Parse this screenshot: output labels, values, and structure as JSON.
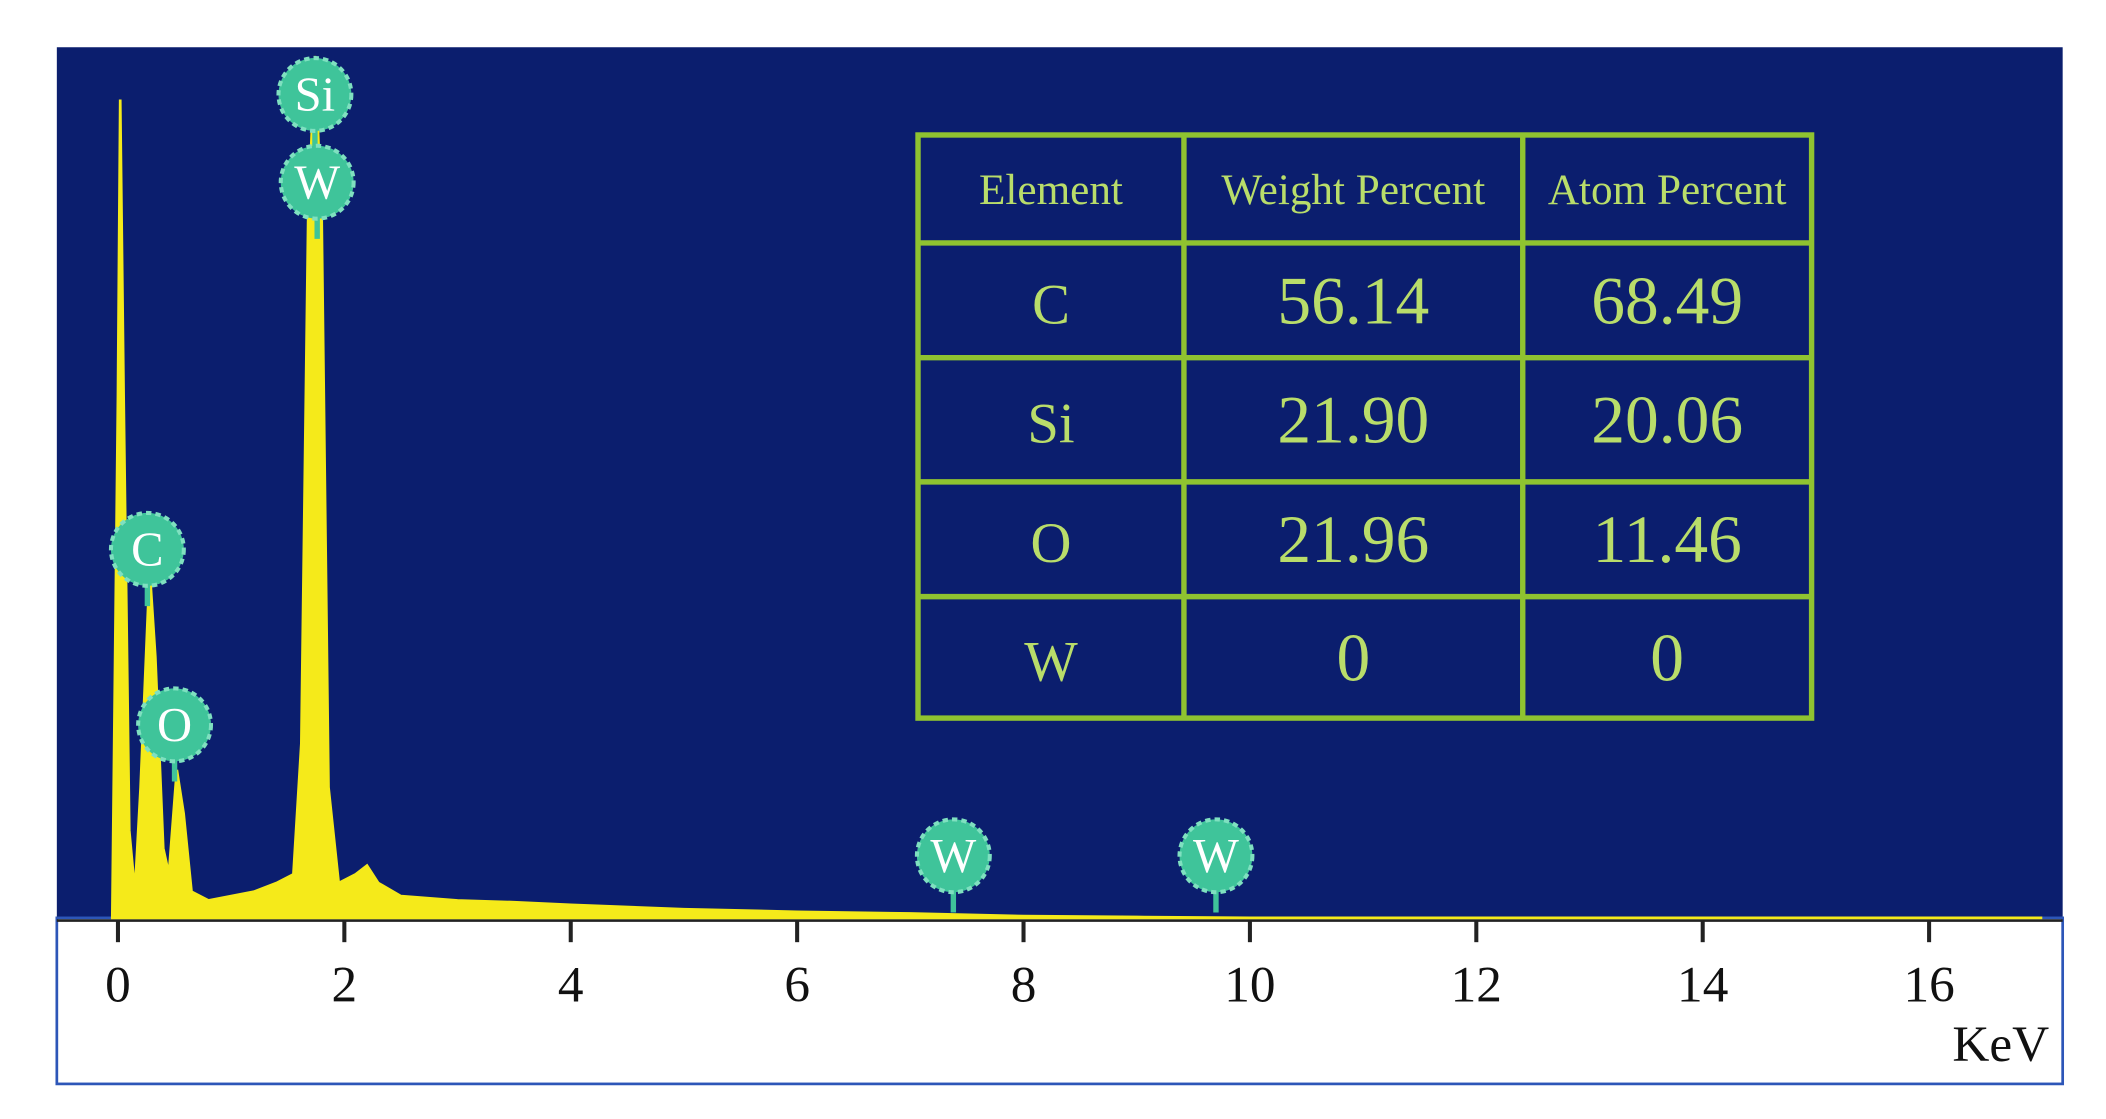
{
  "chart_data": {
    "type": "area",
    "xlabel": "KeV",
    "color": "#f5ea1a",
    "background": "#0b1e6e",
    "x": [
      -0.05,
      0.0,
      0.02,
      0.05,
      0.1,
      0.15,
      0.2,
      0.28,
      0.33,
      0.4,
      0.45,
      0.52,
      0.58,
      0.65,
      0.8,
      1.0,
      1.2,
      1.4,
      1.55,
      1.62,
      1.68,
      1.74,
      1.8,
      1.86,
      1.95,
      2.1,
      2.2,
      2.3,
      2.5,
      3,
      3.5,
      4,
      5,
      6,
      7,
      8,
      9,
      10,
      17
    ],
    "values": [
      0,
      60,
      94,
      60,
      10,
      3,
      15,
      40,
      30,
      8,
      5,
      17,
      12,
      3,
      2,
      2.5,
      3,
      4,
      5,
      20,
      80,
      99,
      80,
      15,
      4,
      5,
      6,
      4,
      2.5,
      2,
      1.8,
      1.5,
      1,
      0.7,
      0.5,
      0.2,
      0.1,
      0,
      0
    ],
    "xlim": [
      -0.54,
      17.18
    ],
    "ylim": [
      0,
      100
    ],
    "xticks": [
      0,
      2,
      4,
      6,
      8,
      10,
      12,
      14,
      16
    ],
    "peak_labels": [
      {
        "label": "Si",
        "x": 1.74
      },
      {
        "label": "W",
        "x": 1.76
      },
      {
        "label": "C",
        "x": 0.26
      },
      {
        "label": "O",
        "x": 0.5
      },
      {
        "label": "W",
        "x": 7.38
      },
      {
        "label": "W",
        "x": 9.7
      }
    ]
  },
  "table": {
    "columns": [
      "Element",
      "Weight Percent",
      "Atom Percent"
    ],
    "rows": [
      [
        "C",
        "56.14",
        "68.49"
      ],
      [
        "Si",
        "21.90",
        "20.06"
      ],
      [
        "O",
        "21.96",
        "11.46"
      ],
      [
        "W",
        "0",
        "0"
      ]
    ]
  }
}
